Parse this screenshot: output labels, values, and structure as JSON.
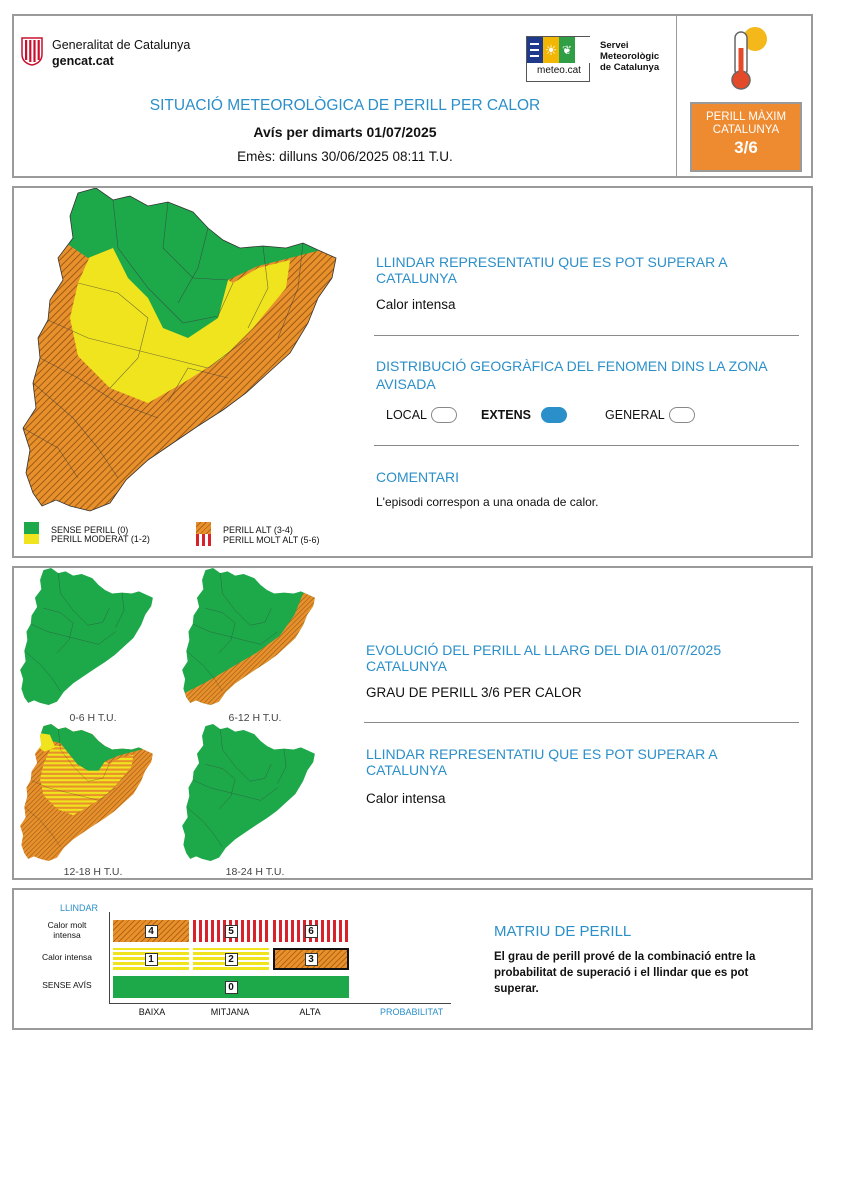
{
  "header": {
    "gov_name": "Generalitat de Catalunya",
    "gov_site": "gencat.cat",
    "smc_lines": [
      "Servei",
      "Meteorològic",
      "de Catalunya"
    ],
    "smc_site": "meteo.cat",
    "title": "SITUACIÓ METEOROLÒGICA DE PERILL PER CALOR",
    "avis": "Avís per dimarts 01/07/2025",
    "emes": "Emès: dilluns 30/06/2025 08:11 T.U.",
    "max_label_1": "PERILL MÀXIM",
    "max_label_2": "CATALUNYA",
    "max_value": "3/6"
  },
  "colors": {
    "accent_blue": "#2b8fc9",
    "green": "#1da84a",
    "yellow": "#f0e41e",
    "orange": "#e8912c",
    "red": "#d8212a"
  },
  "main": {
    "threshold_title": "LLINDAR REPRESENTATIU QUE ES POT SUPERAR A CATALUNYA",
    "threshold_value": "Calor intensa",
    "distribution_title": "DISTRIBUCIÓ GEOGRÀFICA DEL FENOMEN DINS LA ZONA AVISADA",
    "distribution_options": [
      {
        "label": "LOCAL",
        "selected": false
      },
      {
        "label": "EXTENS",
        "selected": true
      },
      {
        "label": "GENERAL",
        "selected": false
      }
    ],
    "comment_title": "COMENTARI",
    "comment_text": "L'episodi correspon a una onada de calor.",
    "legend": [
      {
        "label": "SENSE PERILL (0)",
        "style": "green"
      },
      {
        "label": "PERILL MODERAT (1-2)",
        "style": "yellow"
      },
      {
        "label": "PERILL ALT (3-4)",
        "style": "orange-stripes"
      },
      {
        "label": "PERILL MOLT ALT (5-6)",
        "style": "red-stripes"
      }
    ]
  },
  "evolution": {
    "maps": [
      {
        "label": "0-6 H T.U.",
        "level": "none"
      },
      {
        "label": "6-12 H T.U.",
        "level": "high-coast"
      },
      {
        "label": "12-18 H T.U.",
        "level": "high-wide"
      },
      {
        "label": "18-24 H T.U.",
        "level": "none"
      }
    ],
    "title": "EVOLUCIÓ DEL PERILL AL LLARG DEL DIA 01/07/2025 CATALUNYA",
    "grade": "GRAU DE PERILL 3/6 PER CALOR",
    "threshold_title": "LLINDAR REPRESENTATIU QUE ES POT SUPERAR A CATALUNYA",
    "threshold_value": "Calor intensa"
  },
  "matrix": {
    "y_title": "LLINDAR",
    "rows": [
      "Calor molt intensa",
      "Calor intensa",
      "SENSE AVÍS"
    ],
    "x_labels": [
      "BAIXA",
      "MITJANA",
      "ALTA"
    ],
    "x_title": "PROBABILITAT",
    "cells": {
      "r1": [
        "4",
        "5",
        "6"
      ],
      "r2": [
        "1",
        "2",
        "3"
      ],
      "r3": "0"
    },
    "selected_cell": "3",
    "title": "MATRIU DE PERILL",
    "description": "El grau de perill prové de la combinació entre la probabilitat de superació i el llindar que es pot superar."
  }
}
